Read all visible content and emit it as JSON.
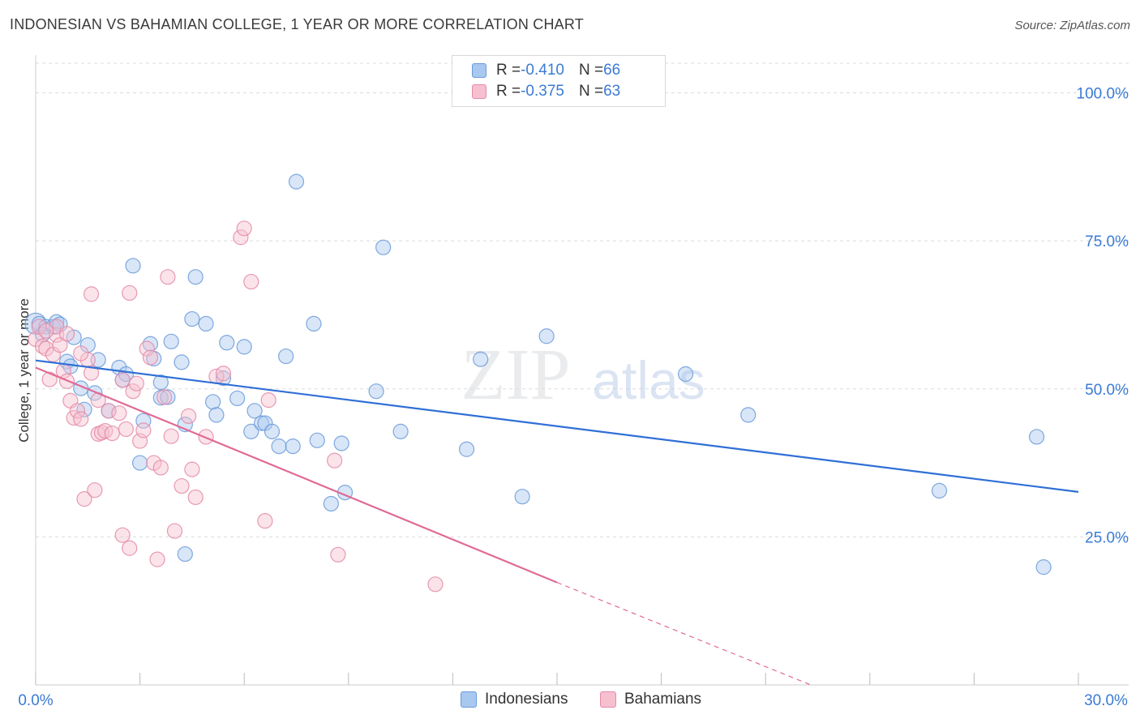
{
  "title": "INDONESIAN VS BAHAMIAN COLLEGE, 1 YEAR OR MORE CORRELATION CHART",
  "source": "Source: ZipAtlas.com",
  "legend": {
    "rows": [
      {
        "r_label": "R = ",
        "r_value": "-0.410",
        "n_label": "N = ",
        "n_value": "66",
        "color": "#a8c8f0",
        "border": "#6a9ad8"
      },
      {
        "r_label": "R = ",
        "r_value": "-0.375",
        "n_label": "N = ",
        "n_value": "63",
        "color": "#f7c0d0",
        "border": "#e48aa6"
      }
    ]
  },
  "bottom_legend": [
    {
      "label": "Indonesians",
      "color": "#a8c8f0",
      "border": "#6a9ad8"
    },
    {
      "label": "Bahamians",
      "color": "#f7c0d0",
      "border": "#e48aa6"
    }
  ],
  "watermark": {
    "zip": "ZIP",
    "atlas": "atlas"
  },
  "chart_data": {
    "type": "scatter",
    "title": "INDONESIAN VS BAHAMIAN COLLEGE, 1 YEAR OR MORE CORRELATION CHART",
    "xlabel": "",
    "ylabel": "College, 1 year or more",
    "xlim": [
      0,
      30
    ],
    "ylim": [
      0,
      105
    ],
    "x_tick_labels": [
      "0.0%",
      "30.0%"
    ],
    "y_ticks": [
      25,
      50,
      75,
      100
    ],
    "y_tick_labels": [
      "25.0%",
      "50.0%",
      "75.0%",
      "100.0%"
    ],
    "grid": true,
    "legend_position": "top-center",
    "series": [
      {
        "name": "Indonesians",
        "color": "#6a9ad8",
        "fill": "#a8c8f0",
        "line_color": "#2f6fd6",
        "trend": {
          "x": [
            0,
            30
          ],
          "y": [
            54.8,
            32.6
          ]
        },
        "points": [
          [
            0.0,
            61.0
          ],
          [
            0.1,
            61.0
          ],
          [
            0.3,
            60.5
          ],
          [
            0.5,
            60.5
          ],
          [
            0.6,
            61.3
          ],
          [
            0.9,
            54.6
          ],
          [
            1.0,
            53.8
          ],
          [
            1.1,
            58.7
          ],
          [
            1.3,
            50.1
          ],
          [
            1.5,
            57.4
          ],
          [
            1.7,
            49.3
          ],
          [
            1.8,
            54.9
          ],
          [
            2.1,
            46.3
          ],
          [
            2.4,
            53.6
          ],
          [
            2.5,
            51.5
          ],
          [
            2.6,
            52.5
          ],
          [
            2.8,
            70.8
          ],
          [
            3.0,
            37.5
          ],
          [
            3.1,
            44.6
          ],
          [
            3.3,
            57.6
          ],
          [
            3.4,
            55.1
          ],
          [
            3.6,
            51.1
          ],
          [
            3.6,
            48.5
          ],
          [
            3.8,
            48.6
          ],
          [
            3.9,
            58.0
          ],
          [
            4.2,
            54.5
          ],
          [
            4.3,
            44.0
          ],
          [
            4.5,
            61.8
          ],
          [
            4.6,
            68.9
          ],
          [
            4.9,
            61.0
          ],
          [
            5.1,
            47.8
          ],
          [
            5.2,
            45.6
          ],
          [
            5.4,
            51.8
          ],
          [
            5.5,
            57.8
          ],
          [
            5.8,
            48.4
          ],
          [
            6.0,
            57.1
          ],
          [
            6.2,
            42.8
          ],
          [
            6.3,
            46.3
          ],
          [
            6.5,
            44.2
          ],
          [
            6.6,
            44.2
          ],
          [
            6.8,
            42.8
          ],
          [
            7.0,
            40.3
          ],
          [
            7.2,
            55.5
          ],
          [
            7.4,
            40.3
          ],
          [
            7.5,
            85.0
          ],
          [
            8.0,
            61.0
          ],
          [
            8.1,
            41.3
          ],
          [
            8.5,
            30.6
          ],
          [
            8.8,
            40.8
          ],
          [
            8.9,
            32.5
          ],
          [
            9.8,
            49.6
          ],
          [
            10.0,
            73.9
          ],
          [
            10.5,
            42.8
          ],
          [
            12.4,
            39.8
          ],
          [
            12.8,
            55.0
          ],
          [
            14.0,
            31.8
          ],
          [
            14.7,
            58.9
          ],
          [
            18.7,
            52.5
          ],
          [
            20.5,
            45.6
          ],
          [
            26.0,
            32.8
          ],
          [
            28.8,
            41.9
          ],
          [
            29.0,
            19.9
          ],
          [
            4.3,
            22.1
          ],
          [
            0.2,
            59.2
          ],
          [
            0.7,
            60.9
          ],
          [
            1.4,
            46.5
          ]
        ]
      },
      {
        "name": "Bahamians",
        "color": "#e48aa6",
        "fill": "#f7c0d0",
        "line_color": "#e06a96",
        "trend": {
          "x": [
            0,
            15
          ],
          "y": [
            53.6,
            17.3
          ]
        },
        "trend_dashed": {
          "x": [
            15,
            22.3
          ],
          "y": [
            17.3,
            0
          ]
        },
        "points": [
          [
            0.0,
            58.4
          ],
          [
            0.1,
            60.5
          ],
          [
            0.2,
            57.2
          ],
          [
            0.3,
            56.8
          ],
          [
            0.4,
            51.6
          ],
          [
            0.5,
            55.8
          ],
          [
            0.6,
            59.1
          ],
          [
            0.6,
            60.5
          ],
          [
            0.7,
            57.4
          ],
          [
            0.8,
            53.0
          ],
          [
            0.9,
            51.3
          ],
          [
            1.0,
            48.0
          ],
          [
            1.1,
            45.1
          ],
          [
            1.2,
            46.3
          ],
          [
            1.3,
            44.9
          ],
          [
            1.4,
            31.4
          ],
          [
            1.5,
            54.9
          ],
          [
            1.6,
            52.7
          ],
          [
            1.7,
            32.9
          ],
          [
            1.8,
            42.4
          ],
          [
            1.9,
            42.6
          ],
          [
            2.0,
            42.9
          ],
          [
            2.1,
            46.3
          ],
          [
            2.2,
            42.5
          ],
          [
            2.4,
            45.9
          ],
          [
            2.5,
            51.5
          ],
          [
            2.5,
            25.3
          ],
          [
            2.6,
            43.2
          ],
          [
            2.7,
            23.1
          ],
          [
            2.8,
            49.6
          ],
          [
            3.0,
            41.2
          ],
          [
            3.1,
            43.0
          ],
          [
            3.2,
            56.8
          ],
          [
            3.3,
            55.3
          ],
          [
            3.4,
            37.5
          ],
          [
            3.5,
            21.2
          ],
          [
            3.6,
            36.7
          ],
          [
            3.8,
            68.9
          ],
          [
            3.9,
            42.0
          ],
          [
            4.0,
            26.0
          ],
          [
            4.2,
            33.6
          ],
          [
            4.5,
            36.4
          ],
          [
            4.6,
            31.7
          ],
          [
            4.9,
            41.9
          ],
          [
            5.2,
            52.1
          ],
          [
            5.4,
            52.6
          ],
          [
            5.9,
            75.6
          ],
          [
            6.0,
            77.1
          ],
          [
            6.2,
            68.1
          ],
          [
            6.6,
            27.7
          ],
          [
            6.7,
            48.1
          ],
          [
            8.6,
            37.9
          ],
          [
            8.7,
            22.0
          ],
          [
            11.5,
            17.0
          ],
          [
            1.6,
            66.0
          ],
          [
            2.7,
            66.2
          ],
          [
            0.3,
            59.8
          ],
          [
            0.9,
            59.3
          ],
          [
            1.3,
            56.0
          ],
          [
            1.8,
            48.1
          ],
          [
            2.9,
            50.9
          ],
          [
            3.7,
            48.6
          ],
          [
            4.4,
            45.4
          ]
        ]
      }
    ]
  }
}
